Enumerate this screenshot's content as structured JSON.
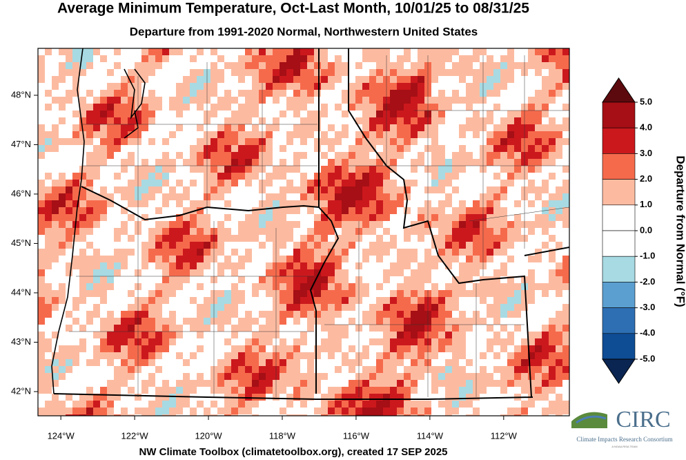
{
  "title": "Average Minimum Temperature, Oct-Last Month, 10/01/25 to 08/31/25",
  "subtitle": "Departure from 1991-2020 Normal, Northwestern United States",
  "map": {
    "xlim": [
      -124.62,
      -110.22
    ],
    "ylim": [
      41.51,
      48.95
    ],
    "xticks": [
      {
        "value": -124,
        "label": "124°W"
      },
      {
        "value": -122,
        "label": "122°W"
      },
      {
        "value": -120,
        "label": "120°W"
      },
      {
        "value": -118,
        "label": "118°W"
      },
      {
        "value": -116,
        "label": "116°W"
      },
      {
        "value": -114,
        "label": "114°W"
      },
      {
        "value": -112,
        "label": "112°W"
      }
    ],
    "yticks": [
      {
        "value": 48,
        "label": "48°N"
      },
      {
        "value": 47,
        "label": "47°N"
      },
      {
        "value": 46,
        "label": "46°N"
      },
      {
        "value": 45,
        "label": "45°N"
      },
      {
        "value": 44,
        "label": "44°N"
      },
      {
        "value": 43,
        "label": "43°N"
      },
      {
        "value": 42,
        "label": "42°N"
      }
    ]
  },
  "colorbar": {
    "title": "Departure from Normal (°F)",
    "ticks": [
      {
        "value": 5,
        "label": "5.0"
      },
      {
        "value": 4,
        "label": "4.0"
      },
      {
        "value": 3,
        "label": "3.0"
      },
      {
        "value": 2,
        "label": "2.0"
      },
      {
        "value": 1,
        "label": "1.0"
      },
      {
        "value": 0,
        "label": "0.0"
      },
      {
        "value": -1,
        "label": "-1.0"
      },
      {
        "value": -2,
        "label": "-2.0"
      },
      {
        "value": -3,
        "label": "-3.0"
      },
      {
        "value": -4,
        "label": "-4.0"
      },
      {
        "value": -5,
        "label": "-5.0"
      }
    ],
    "colors": [
      "#5c0a0e",
      "#a50f15",
      "#cb181d",
      "#f66a4c",
      "#fcbba1",
      "#ffffff",
      "#ffffff",
      "#a7dae3",
      "#5b9fd0",
      "#2e6fb4",
      "#0e4c94",
      "#0b2552"
    ]
  },
  "footer": "NW Climate Toolbox (climatetoolbox.org), created 17 SEP 2025",
  "logo": {
    "name": "CIRC",
    "text": "Climate Impacts Research Consortium",
    "tagline": "A NOAA RISA TEAM"
  }
}
